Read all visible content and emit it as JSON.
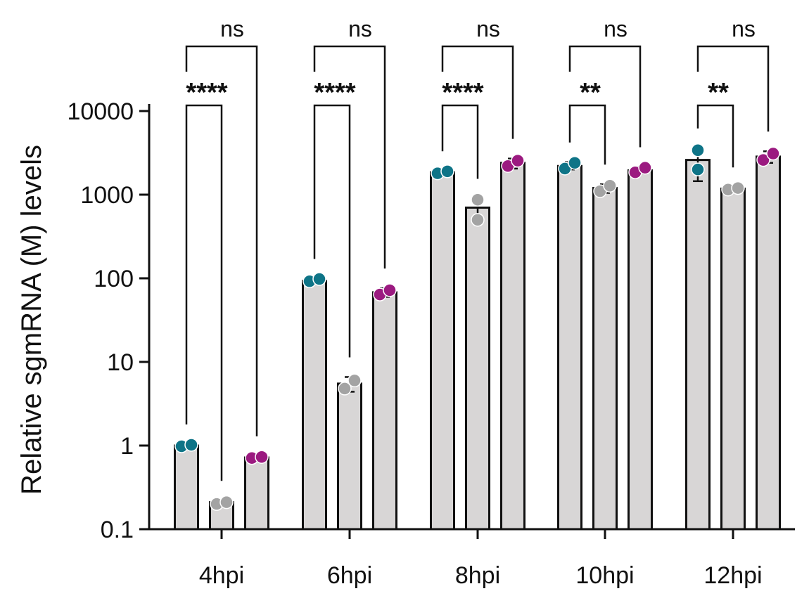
{
  "chart_data": {
    "type": "bar",
    "ylabel": "Relative sgmRNA (M) levels",
    "yscale": "log",
    "ylim": [
      0.1,
      10000
    ],
    "yticks": [
      {
        "value": 0.1,
        "label": "0.1"
      },
      {
        "value": 1,
        "label": "1"
      },
      {
        "value": 10,
        "label": "10"
      },
      {
        "value": 100,
        "label": "100"
      },
      {
        "value": 1000,
        "label": "1000"
      },
      {
        "value": 10000,
        "label": "10000"
      }
    ],
    "categories": [
      "4hpi",
      "6hpi",
      "8hpi",
      "10hpi",
      "12hpi"
    ],
    "series": [
      {
        "color": "#0e7487",
        "values": [
          1.0,
          93,
          1850,
          2200,
          2600
        ],
        "points": [
          [
            0.98,
            1.02
          ],
          [
            92,
            98
          ],
          [
            1800,
            1900
          ],
          [
            2050,
            2400
          ],
          [
            2000,
            3400
          ]
        ],
        "err": [
          [
            0.95,
            1.04
          ],
          [
            90,
            99
          ],
          [
            1780,
            1920
          ],
          [
            2000,
            2450
          ],
          [
            1450,
            3600
          ]
        ]
      },
      {
        "color": "#a3a3a3",
        "values": [
          0.21,
          5.5,
          700,
          1200,
          1180
        ],
        "points": [
          [
            0.2,
            0.21
          ],
          [
            4.8,
            6.0
          ],
          [
            500,
            870
          ],
          [
            1100,
            1280
          ],
          [
            1150,
            1200
          ]
        ],
        "err": [
          [
            0.19,
            0.22
          ],
          [
            4.4,
            6.6
          ],
          [
            480,
            900
          ],
          [
            1050,
            1330
          ],
          [
            1120,
            1230
          ]
        ]
      },
      {
        "color": "#9b1a80",
        "values": [
          0.72,
          68,
          2400,
          1950,
          2850
        ],
        "points": [
          [
            0.71,
            0.73
          ],
          [
            64,
            72
          ],
          [
            2200,
            2550
          ],
          [
            1850,
            2100
          ],
          [
            2600,
            3100
          ]
        ],
        "err": [
          [
            0.69,
            0.75
          ],
          [
            60,
            76
          ],
          [
            2050,
            2700
          ],
          [
            1800,
            2150
          ],
          [
            2400,
            3300
          ]
        ]
      }
    ],
    "significance": [
      {
        "category": "4hpi",
        "inner": "****",
        "outer": "ns"
      },
      {
        "category": "6hpi",
        "inner": "****",
        "outer": "ns"
      },
      {
        "category": "8hpi",
        "inner": "****",
        "outer": "ns"
      },
      {
        "category": "10hpi",
        "inner": "**",
        "outer": "ns"
      },
      {
        "category": "12hpi",
        "inner": "**",
        "outer": "ns"
      }
    ]
  }
}
